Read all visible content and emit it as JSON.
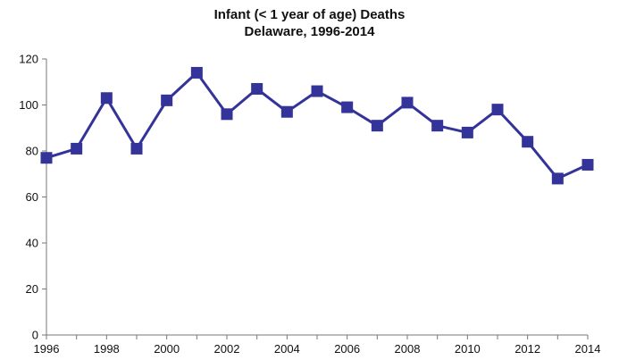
{
  "chart_data": {
    "type": "line",
    "title_line1": "Infant (< 1 year of age) Deaths",
    "title_line2": "Delaware, 1996-2014",
    "x": [
      1996,
      1997,
      1998,
      1999,
      2000,
      2001,
      2002,
      2003,
      2004,
      2005,
      2006,
      2007,
      2008,
      2009,
      2010,
      2011,
      2012,
      2013,
      2014
    ],
    "series": [
      {
        "values": [
          77,
          81,
          103,
          81,
          102,
          114,
          96,
          107,
          97,
          106,
          99,
          91,
          101,
          91,
          88,
          98,
          84,
          68,
          74
        ]
      }
    ],
    "ylim": [
      0,
      120
    ],
    "yticks": [
      0,
      20,
      40,
      60,
      80,
      100,
      120
    ],
    "xtick_labels": [
      1996,
      1998,
      2000,
      2002,
      2004,
      2006,
      2008,
      2010,
      2012,
      2014
    ],
    "xlim": [
      1996,
      2014
    ],
    "grid": false,
    "line_color": "#333399",
    "marker": "square"
  }
}
